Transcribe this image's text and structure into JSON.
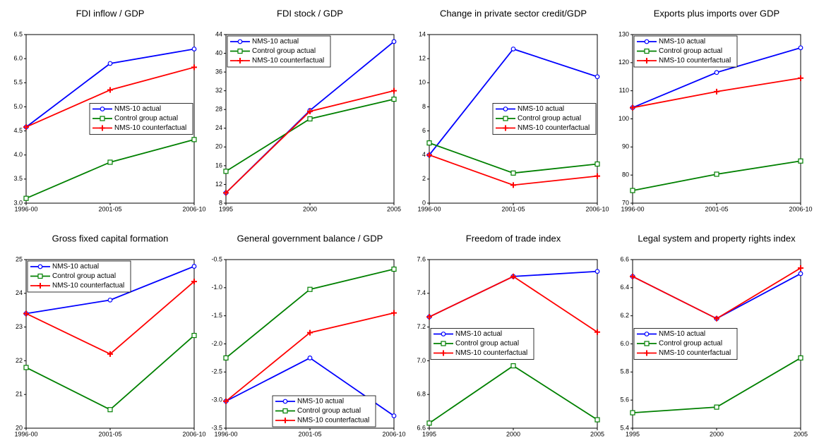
{
  "chart_data": [
    {
      "type": "line",
      "title": "FDI inflow / GDP",
      "categories": [
        "1996-00",
        "2001-05",
        "2006-10"
      ],
      "ylim": [
        3.0,
        6.5
      ],
      "yticks": [
        {
          "value": 3,
          "label": "3.0"
        },
        3.5,
        {
          "value": 4,
          "label": "4.0"
        },
        4.5,
        {
          "value": 5,
          "label": "5.0"
        },
        5.5,
        {
          "value": 6,
          "label": "6.0"
        },
        6.5
      ],
      "legend": "center right",
      "series": [
        {
          "name": "NMS-10 actual",
          "color": "#0000ff",
          "marker": "circle",
          "values": [
            4.58,
            5.9,
            6.2
          ]
        },
        {
          "name": "Control group actual",
          "color": "#008000",
          "marker": "square",
          "values": [
            3.1,
            3.85,
            4.32
          ]
        },
        {
          "name": "NMS-10 counterfactual",
          "color": "#ff0000",
          "marker": "plus",
          "values": [
            4.58,
            5.35,
            5.82
          ]
        }
      ]
    },
    {
      "type": "line",
      "title": "FDI stock / GDP",
      "categories": [
        "1995",
        "2000",
        "2005"
      ],
      "ylim": [
        8,
        44
      ],
      "yticks": [
        8,
        12,
        16,
        20,
        24,
        28,
        32,
        36,
        40,
        44
      ],
      "legend": "upper left",
      "series": [
        {
          "name": "NMS-10 actual",
          "color": "#0000ff",
          "marker": "circle",
          "values": [
            10.2,
            27.8,
            42.5
          ]
        },
        {
          "name": "Control group actual",
          "color": "#008000",
          "marker": "square",
          "values": [
            14.8,
            26,
            30.2
          ]
        },
        {
          "name": "NMS-10 counterfactual",
          "color": "#ff0000",
          "marker": "plus",
          "values": [
            10.2,
            27.6,
            32
          ]
        }
      ]
    },
    {
      "type": "line",
      "title": "Change in private sector credit/GDP",
      "categories": [
        "1996-00",
        "2001-05",
        "2006-10"
      ],
      "ylim": [
        0,
        14
      ],
      "yticks": [
        0,
        2,
        4,
        6,
        8,
        10,
        12,
        14
      ],
      "legend": "center right",
      "series": [
        {
          "name": "NMS-10 actual",
          "color": "#0000ff",
          "marker": "circle",
          "values": [
            4.0,
            12.8,
            10.5
          ]
        },
        {
          "name": "Control group actual",
          "color": "#008000",
          "marker": "square",
          "values": [
            5.0,
            2.5,
            3.25
          ]
        },
        {
          "name": "NMS-10 counterfactual",
          "color": "#ff0000",
          "marker": "plus",
          "values": [
            4.0,
            1.5,
            2.25
          ]
        }
      ]
    },
    {
      "type": "line",
      "title": "Exports plus imports over GDP",
      "categories": [
        "1996-00",
        "2001-05",
        "2006-10"
      ],
      "ylim": [
        70,
        130
      ],
      "yticks": [
        70,
        80,
        90,
        100,
        110,
        120,
        130
      ],
      "legend": "upper left",
      "series": [
        {
          "name": "NMS-10 actual",
          "color": "#0000ff",
          "marker": "circle",
          "values": [
            104,
            116.5,
            125.3
          ]
        },
        {
          "name": "Control group actual",
          "color": "#008000",
          "marker": "square",
          "values": [
            74.5,
            80.3,
            85
          ]
        },
        {
          "name": "NMS-10 counterfactual",
          "color": "#ff0000",
          "marker": "plus",
          "values": [
            104,
            109.7,
            114.5
          ]
        }
      ]
    },
    {
      "type": "line",
      "title": "Gross fixed capital formation",
      "categories": [
        "1996-00",
        "2001-05",
        "2006-10"
      ],
      "ylim": [
        20,
        25
      ],
      "yticks": [
        20,
        21,
        22,
        23,
        24,
        25
      ],
      "legend": "upper left",
      "series": [
        {
          "name": "NMS-10 actual",
          "color": "#0000ff",
          "marker": "circle",
          "values": [
            23.4,
            23.8,
            24.8
          ]
        },
        {
          "name": "Control group actual",
          "color": "#008000",
          "marker": "square",
          "values": [
            21.8,
            20.55,
            22.75
          ]
        },
        {
          "name": "NMS-10 counterfactual",
          "color": "#ff0000",
          "marker": "plus",
          "values": [
            23.4,
            22.2,
            24.35
          ]
        }
      ]
    },
    {
      "type": "line",
      "title": "General government balance / GDP",
      "categories": [
        "1996-00",
        "2001-05",
        "2006-10"
      ],
      "ylim": [
        -3.5,
        -0.5
      ],
      "yticks": [
        -3.5,
        {
          "value": -3,
          "label": "-3.0"
        },
        -2.5,
        {
          "value": -2,
          "label": "-2.0"
        },
        -1.5,
        {
          "value": -1,
          "label": "-1.0"
        },
        -0.5
      ],
      "legend": "lower center",
      "series": [
        {
          "name": "NMS-10 actual",
          "color": "#0000ff",
          "marker": "circle",
          "values": [
            -3.02,
            -2.25,
            -3.28
          ]
        },
        {
          "name": "Control group actual",
          "color": "#008000",
          "marker": "square",
          "values": [
            -2.25,
            -1.03,
            -0.67
          ]
        },
        {
          "name": "NMS-10 counterfactual",
          "color": "#ff0000",
          "marker": "plus",
          "values": [
            -3.02,
            -1.8,
            -1.45
          ]
        }
      ]
    },
    {
      "type": "line",
      "title": "Freedom of trade index",
      "categories": [
        "1995",
        "2000",
        "2005"
      ],
      "ylim": [
        6.6,
        7.6
      ],
      "yticks": [
        6.6,
        6.8,
        {
          "value": 7,
          "label": "7.0"
        },
        7.2,
        7.4,
        7.6
      ],
      "legend": "center left",
      "series": [
        {
          "name": "NMS-10 actual",
          "color": "#0000ff",
          "marker": "circle",
          "values": [
            7.26,
            7.5,
            7.53
          ]
        },
        {
          "name": "Control group actual",
          "color": "#008000",
          "marker": "square",
          "values": [
            6.63,
            6.97,
            6.65
          ]
        },
        {
          "name": "NMS-10 counterfactual",
          "color": "#ff0000",
          "marker": "plus",
          "values": [
            7.26,
            7.5,
            7.17
          ]
        }
      ]
    },
    {
      "type": "line",
      "title": "Legal system and property rights index",
      "categories": [
        "1995",
        "2000",
        "2005"
      ],
      "ylim": [
        5.4,
        6.6
      ],
      "yticks": [
        5.4,
        5.6,
        5.8,
        {
          "value": 6,
          "label": "6.0"
        },
        6.2,
        6.4,
        6.6
      ],
      "legend": "center left",
      "series": [
        {
          "name": "NMS-10 actual",
          "color": "#0000ff",
          "marker": "circle",
          "values": [
            6.48,
            6.18,
            6.5
          ]
        },
        {
          "name": "Control group actual",
          "color": "#008000",
          "marker": "square",
          "values": [
            5.51,
            5.55,
            5.9
          ]
        },
        {
          "name": "NMS-10 counterfactual",
          "color": "#ff0000",
          "marker": "plus",
          "values": [
            6.48,
            6.18,
            6.54
          ]
        }
      ]
    }
  ]
}
